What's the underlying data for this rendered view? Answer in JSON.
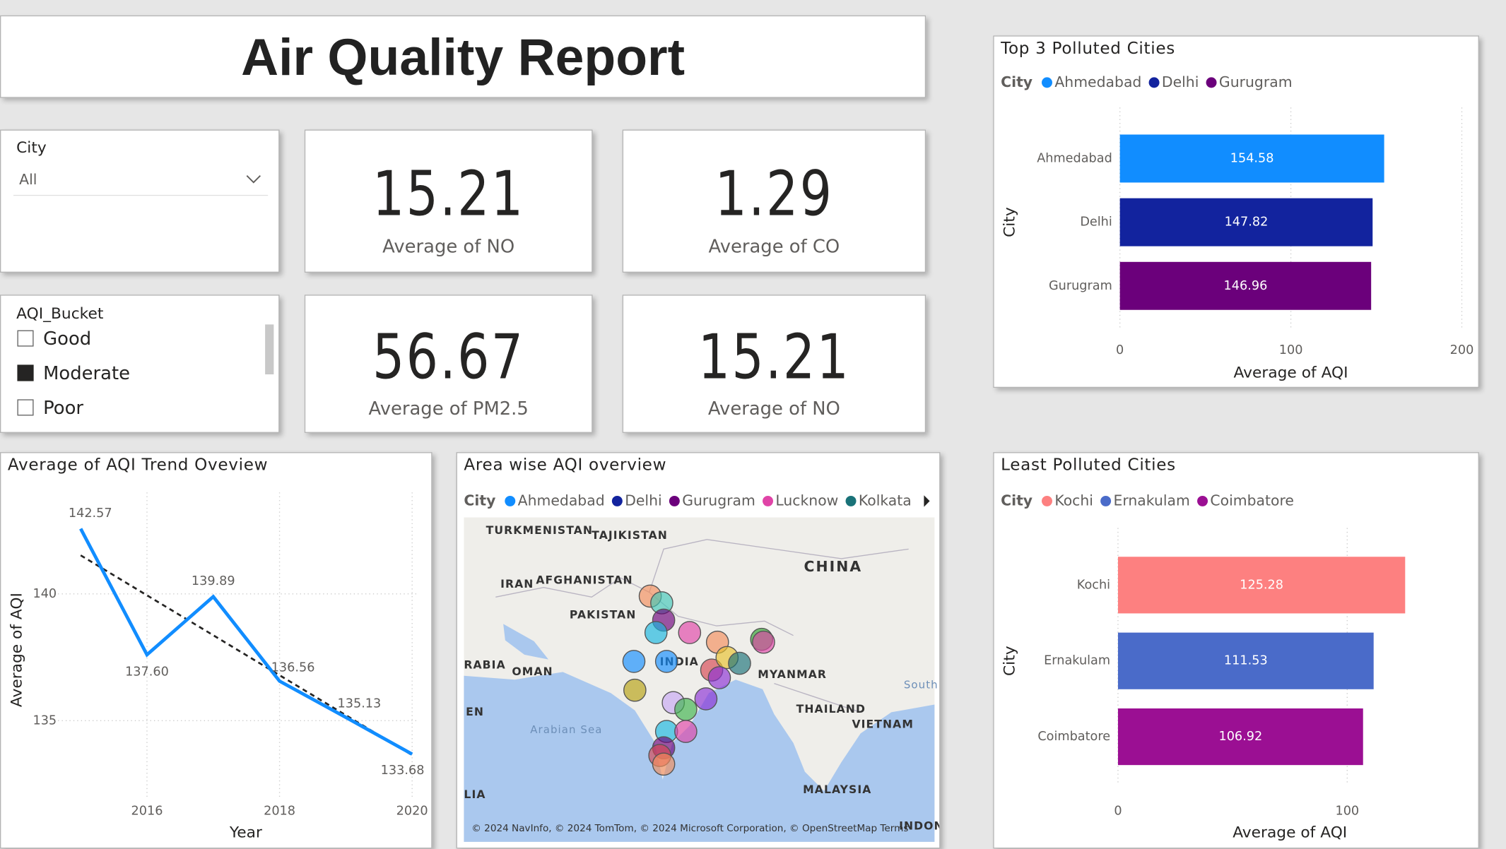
{
  "header": {
    "title": "Air Quality Report"
  },
  "slicers": [
    {
      "label": "City",
      "value": "All"
    },
    {
      "label": "AQI_Bucket",
      "options": [
        "Good",
        "Moderate",
        "Poor"
      ],
      "checked": [
        false,
        true,
        false
      ]
    }
  ],
  "cards": [
    {
      "value": 15.21,
      "label": "Average of NO"
    },
    {
      "value": 1.29,
      "label": "Average of CO"
    },
    {
      "value": 56.67,
      "label": "Average of PM2.5"
    },
    {
      "value": 15.21,
      "label": "Average of NO"
    }
  ],
  "chart_data": [
    {
      "type": "bar",
      "orientation": "horizontal",
      "title": "Top 3 Polluted Cities",
      "legend_title": "City",
      "categories": [
        "Ahmedabad",
        "Delhi",
        "Gurugram"
      ],
      "values": [
        154.58,
        147.82,
        146.96
      ],
      "colors": [
        "#118dff",
        "#12239e",
        "#6b007b"
      ],
      "xlim": [
        0,
        200
      ],
      "xticks": [
        0,
        100,
        200
      ],
      "xlabel": "Average of AQI",
      "ylabel": "City",
      "grid": true
    },
    {
      "type": "line",
      "title": "Average of AQI Trend Oveview",
      "x": [
        2015,
        2016,
        2017,
        2018,
        2019,
        2020
      ],
      "values": [
        142.57,
        137.6,
        139.89,
        136.56,
        135.13,
        133.68
      ],
      "value_labels": [
        "142.57",
        "137.60",
        "139.89",
        "136.56",
        "135.13",
        "133.68"
      ],
      "color": "#118dff",
      "xlim": [
        2014.6,
        2020.1
      ],
      "ylim": [
        132,
        144
      ],
      "xticks": [
        2016,
        2018,
        2020
      ],
      "yticks": [
        135,
        140
      ],
      "xlabel": "Year",
      "ylabel": "Average of AQI",
      "grid": true,
      "trend_line": {
        "x": [
          2015,
          2020
        ],
        "values": [
          141.52,
          133.64
        ]
      }
    },
    {
      "type": "map",
      "title": "Area wise AQI overview",
      "legend_title": "City",
      "legend_items": [
        "Ahmedabad",
        "Delhi",
        "Gurugram",
        "Lucknow",
        "Kolkata"
      ],
      "legend_colors": [
        "#118dff",
        "#12239e",
        "#6b007b",
        "#e044a7",
        "#197278"
      ],
      "map_labels": [
        "TURKMENISTAN",
        "TAJIKISTAN",
        "CHINA",
        "IRAN",
        "AFGHANISTAN",
        "PAKISTAN",
        "RABIA",
        "OMAN",
        "INDIA",
        "MYANMAR",
        "THAILAND",
        "VIETNAM",
        "South China Sea",
        "Arabian Sea",
        "EN",
        "MALAYSIA",
        "LIA",
        "INDON"
      ],
      "attribution": "© 2024 NavInfo, © 2024 TomTom, © 2024 Microsoft Corporation, © OpenStreetMap  Terms"
    },
    {
      "type": "bar",
      "orientation": "horizontal",
      "title": "Least Polluted Cities",
      "legend_title": "City",
      "categories": [
        "Kochi",
        "Ernakulam",
        "Coimbatore"
      ],
      "values": [
        125.28,
        111.53,
        106.92
      ],
      "colors": [
        "#fd8080",
        "#4a6bc9",
        "#9b0f93"
      ],
      "xlim": [
        0,
        150
      ],
      "xticks": [
        0,
        100
      ],
      "xlabel": "Average of AQI",
      "ylabel": "City",
      "grid": true
    }
  ]
}
